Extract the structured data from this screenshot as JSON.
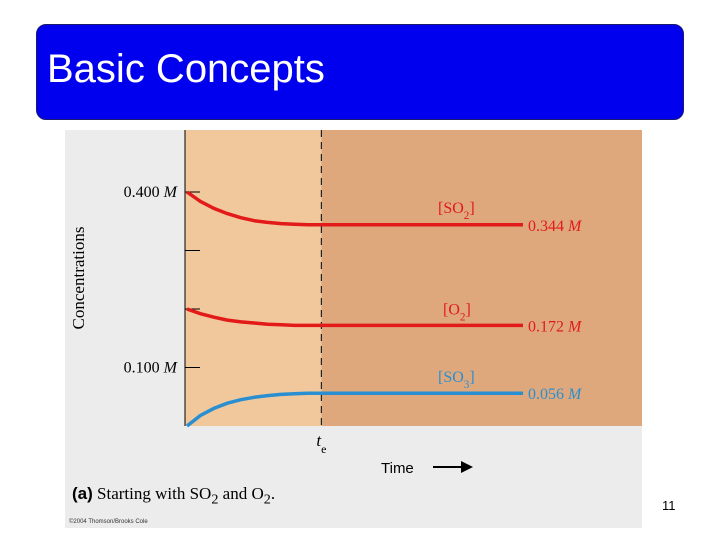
{
  "slide": {
    "title": "Basic Concepts",
    "number": "11"
  },
  "figure": {
    "caption_tag": "(a)",
    "caption_text_1": " Starting with SO",
    "caption_sub_1": "2",
    "caption_text_2": " and O",
    "caption_sub_2": "2",
    "caption_text_3": ".",
    "credit": "©2004 Thomson/Brooks Cole"
  },
  "colors": {
    "left_region": "#f1c89c",
    "right_region": "#dfa87c",
    "so2": "#e21a1a",
    "o2": "#e21a1a",
    "so3": "#2a8fd0",
    "panel": "#ececec"
  },
  "chart_data": {
    "type": "line",
    "ylabel": "Concentrations",
    "xlabel": "Time",
    "y_ticks": [
      {
        "value": 0.4,
        "label": "0.400 ",
        "unit": "M"
      },
      {
        "value": 0.3,
        "label": ""
      },
      {
        "value": 0.2,
        "label": ""
      },
      {
        "value": 0.1,
        "label": "0.100 ",
        "unit": "M"
      }
    ],
    "ylim": [
      0,
      0.4
    ],
    "equilibrium_time_label": "t",
    "equilibrium_time_sub": "e",
    "equilibrium_time": 1.0,
    "xlim": [
      0,
      3.0
    ],
    "series": [
      {
        "name": "[SO",
        "name_sub": "2",
        "name_end": "]",
        "key": "so2",
        "x": [
          0,
          0.1,
          0.2,
          0.3,
          0.4,
          0.5,
          0.6,
          0.7,
          0.8,
          0.9,
          1.0,
          2.5
        ],
        "values": [
          0.4,
          0.384,
          0.372,
          0.363,
          0.356,
          0.351,
          0.348,
          0.346,
          0.345,
          0.344,
          0.344,
          0.344
        ],
        "end_label": "0.344 ",
        "end_unit": "M"
      },
      {
        "name": "[O",
        "name_sub": "2",
        "name_end": "]",
        "key": "o2",
        "x": [
          0,
          0.1,
          0.2,
          0.3,
          0.4,
          0.5,
          0.6,
          0.7,
          0.8,
          0.9,
          1.0,
          2.5
        ],
        "values": [
          0.2,
          0.192,
          0.186,
          0.181,
          0.178,
          0.176,
          0.174,
          0.173,
          0.172,
          0.172,
          0.172,
          0.172
        ],
        "end_label": "0.172 ",
        "end_unit": "M"
      },
      {
        "name": "[SO",
        "name_sub": "3",
        "name_end": "]",
        "key": "so3",
        "x": [
          0,
          0.1,
          0.2,
          0.3,
          0.4,
          0.5,
          0.6,
          0.7,
          0.8,
          0.9,
          1.0,
          2.5
        ],
        "values": [
          0.0,
          0.018,
          0.03,
          0.039,
          0.045,
          0.049,
          0.052,
          0.054,
          0.055,
          0.056,
          0.056,
          0.056
        ],
        "end_label": "0.056 ",
        "end_unit": "M"
      }
    ]
  }
}
